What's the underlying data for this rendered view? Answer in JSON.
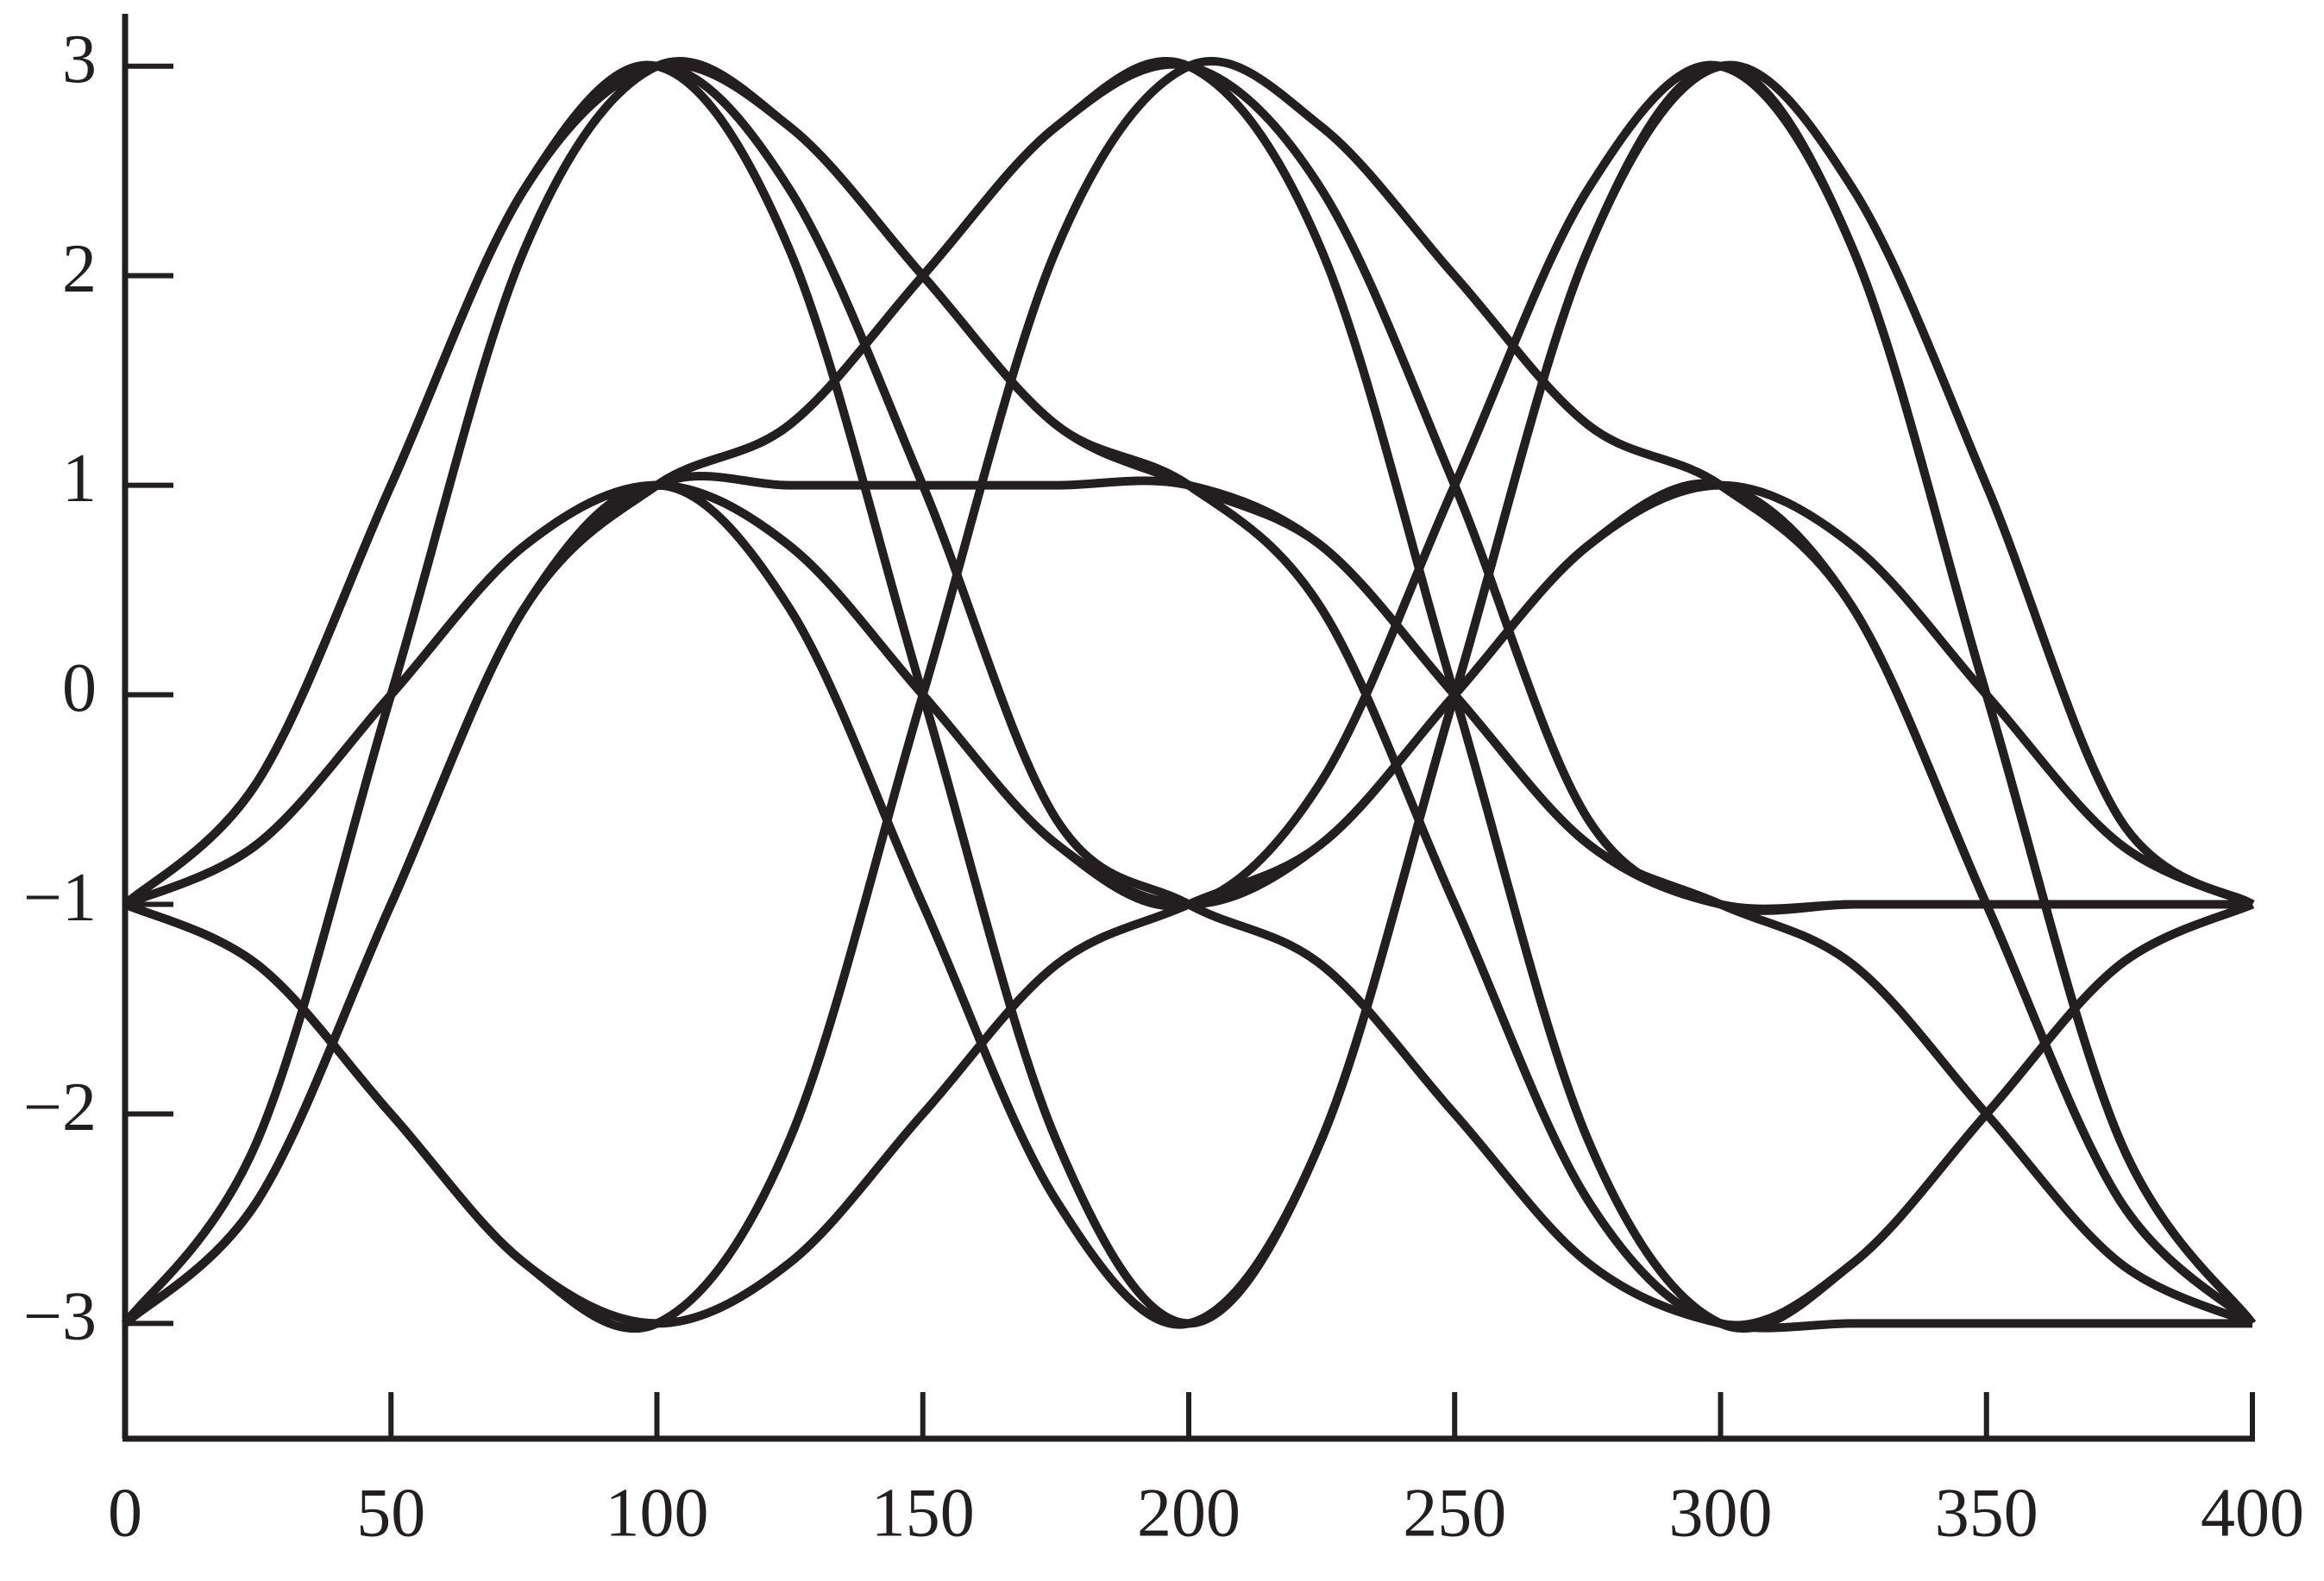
{
  "chart_data": {
    "type": "line",
    "color": "#231f20",
    "x": [
      0,
      25,
      50,
      75,
      100,
      125,
      150,
      175,
      200,
      225,
      250,
      275,
      300,
      325,
      350,
      375,
      400
    ],
    "series": [
      {
        "values": [
          -1,
          -0.41,
          1,
          2.41,
          3,
          2.12,
          0,
          -2.12,
          -3,
          -2.12,
          0,
          2.12,
          3,
          2.12,
          0,
          -2.12,
          -3
        ]
      },
      {
        "values": [
          -3,
          -2.41,
          -1,
          0.41,
          1,
          1.29,
          2,
          2.71,
          3,
          2.41,
          1,
          -0.59,
          -1,
          -1,
          -1,
          -1,
          -1
        ]
      },
      {
        "values": [
          -1,
          -0.71,
          0,
          0.71,
          1,
          0.71,
          0,
          -0.71,
          -1,
          -0.71,
          0,
          0.71,
          1,
          0.71,
          0,
          -0.71,
          -1
        ]
      },
      {
        "values": [
          -3,
          -2.12,
          0,
          2.12,
          3,
          2.71,
          2,
          1.29,
          1,
          0.41,
          -1,
          -2.41,
          -3,
          -2.71,
          -2,
          -1.29,
          -1
        ]
      },
      {
        "values": [
          -1,
          -1.29,
          -2,
          -2.71,
          -3,
          -2.12,
          0,
          2.12,
          3,
          2.71,
          2,
          1.29,
          1,
          0.41,
          -1,
          -2.41,
          -3
        ]
      },
      {
        "values": [
          -3,
          -2.41,
          -1,
          0.41,
          1,
          0.41,
          -1,
          -2.41,
          -3,
          -2.12,
          0,
          2.12,
          3,
          2.41,
          1,
          -0.59,
          -1
        ]
      },
      {
        "values": [
          -1,
          -0.41,
          1,
          2.41,
          3,
          2.41,
          1,
          -0.59,
          -1,
          -1.29,
          -2,
          -2.71,
          -3,
          -3,
          -3,
          -3,
          -3
        ]
      },
      {
        "values": [
          -1,
          -1.29,
          -2,
          -2.71,
          -3,
          -2.71,
          -2,
          -1.29,
          -1,
          -0.71,
          0,
          0.71,
          1,
          0.41,
          -1,
          -2.41,
          -3
        ]
      },
      {
        "values": [
          -3,
          -2.41,
          -1,
          0.41,
          1,
          1,
          1,
          1,
          1,
          0.71,
          0,
          -0.71,
          -1,
          -1,
          -1,
          -1,
          -1
        ]
      },
      {
        "values": [
          -1,
          -0.41,
          1,
          2.41,
          3,
          2.71,
          2,
          1.29,
          1,
          0.71,
          0,
          -0.71,
          -1,
          -1.29,
          -2,
          -2.71,
          -3
        ]
      },
      {
        "values": [
          -3,
          -2.41,
          -1,
          0.41,
          1,
          1.29,
          2,
          2.71,
          3,
          2.12,
          0,
          -2.12,
          -3,
          -2.71,
          -2,
          -1.29,
          -1
        ]
      },
      {
        "values": [
          -1,
          -0.71,
          0,
          0.71,
          1,
          0.71,
          0,
          -0.71,
          -1,
          -0.41,
          1,
          2.41,
          3,
          2.12,
          0,
          -2.12,
          -3
        ]
      }
    ],
    "xlim": [
      0,
      400
    ],
    "xticks": [
      0,
      50,
      100,
      150,
      200,
      250,
      300,
      350,
      400
    ],
    "ylim": [
      -3.55,
      3.25
    ],
    "yticks": [
      {
        "value": -3,
        "label": "−3"
      },
      {
        "value": -2,
        "label": "−2"
      },
      {
        "value": -1,
        "label": "−1"
      },
      0,
      1,
      2,
      3
    ]
  }
}
